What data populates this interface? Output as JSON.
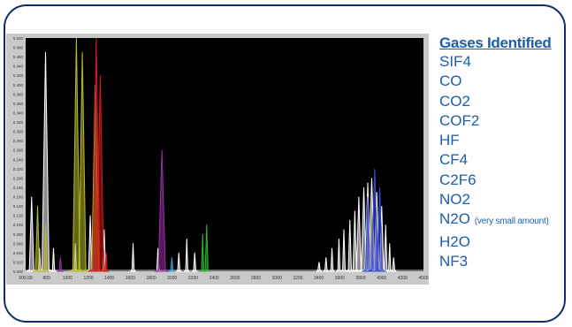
{
  "legend": {
    "title": "Gases Identified",
    "items": [
      {
        "label": "SIF4",
        "note": ""
      },
      {
        "label": "CO",
        "note": ""
      },
      {
        "label": "CO2",
        "note": ""
      },
      {
        "label": "COF2",
        "note": ""
      },
      {
        "label": "HF",
        "note": ""
      },
      {
        "label": "CF4",
        "note": ""
      },
      {
        "label": "C2F6",
        "note": ""
      },
      {
        "label": "NO2",
        "note": ""
      },
      {
        "label": "N2O",
        "note": "(very small amount)"
      },
      {
        "label": "H2O",
        "note": ""
      },
      {
        "label": "NF3",
        "note": ""
      }
    ]
  },
  "chart_data": {
    "type": "line",
    "title": "",
    "xlabel": "",
    "ylabel": "",
    "xlim": [
      500,
      4500
    ],
    "ylim": [
      0,
      0.5
    ],
    "x_ticks": [
      "500.00",
      "800",
      "1000",
      "1200",
      "1400",
      "1600",
      "1800",
      "2000",
      "2200",
      "2400",
      "2600",
      "2800",
      "3000",
      "3200",
      "3400",
      "3600",
      "3800",
      "4000",
      "4200",
      "4500"
    ],
    "y_ticks": [
      "0.000",
      "0.020",
      "0.040",
      "0.060",
      "0.080",
      "0.100",
      "0.120",
      "0.140",
      "0.160",
      "0.180",
      "0.200",
      "0.220",
      "0.240",
      "0.260",
      "0.280",
      "0.300",
      "0.320",
      "0.340",
      "0.360",
      "0.380",
      "0.400",
      "0.420",
      "0.440",
      "0.460",
      "0.480",
      "0.500"
    ],
    "background": "#000000",
    "grid": false,
    "series": [
      {
        "color": "#ffffff",
        "peaks": [
          [
            560,
            0.16
          ],
          [
            640,
            0.05
          ],
          [
            700,
            0.47
          ],
          [
            780,
            0.05
          ],
          [
            1000,
            0.06
          ],
          [
            1150,
            0.12
          ],
          [
            1290,
            0.09
          ],
          [
            1580,
            0.06
          ],
          [
            1830,
            0.05
          ],
          [
            2040,
            0.04
          ],
          [
            2120,
            0.07
          ],
          [
            2200,
            0.04
          ],
          [
            3450,
            0.02
          ],
          [
            3520,
            0.03
          ],
          [
            3580,
            0.05
          ],
          [
            3650,
            0.07
          ],
          [
            3700,
            0.09
          ],
          [
            3760,
            0.11
          ],
          [
            3810,
            0.13
          ],
          [
            3850,
            0.16
          ],
          [
            3900,
            0.18
          ],
          [
            3940,
            0.19
          ],
          [
            3980,
            0.2
          ],
          [
            4030,
            0.17
          ],
          [
            4080,
            0.14
          ],
          [
            4120,
            0.1
          ],
          [
            4160,
            0.06
          ],
          [
            4200,
            0.03
          ]
        ]
      },
      {
        "color": "#b8bc2a",
        "peaks": [
          [
            620,
            0.14
          ],
          [
            700,
            0.1
          ],
          [
            1010,
            0.5
          ],
          [
            1070,
            0.47
          ],
          [
            1200,
            0.4
          ]
        ]
      },
      {
        "color": "#d21c1c",
        "peaks": [
          [
            1210,
            0.5
          ],
          [
            1250,
            0.42
          ],
          [
            1310,
            0.04
          ]
        ]
      },
      {
        "color": "#9a2fa6",
        "peaks": [
          [
            850,
            0.03
          ],
          [
            1870,
            0.26
          ]
        ]
      },
      {
        "color": "#2db62d",
        "peaks": [
          [
            2280,
            0.08
          ],
          [
            2320,
            0.1
          ]
        ]
      },
      {
        "color": "#2aaed8",
        "peaks": [
          [
            1970,
            0.03
          ]
        ]
      },
      {
        "color": "#3a4ad6",
        "peaks": [
          [
            3940,
            0.16
          ],
          [
            4010,
            0.22
          ],
          [
            4060,
            0.18
          ]
        ]
      }
    ]
  }
}
